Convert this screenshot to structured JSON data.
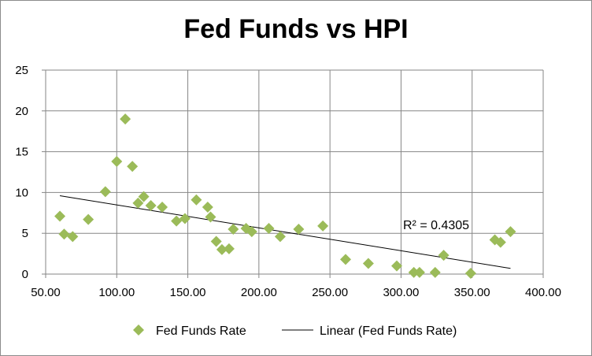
{
  "chart_data": {
    "type": "scatter",
    "title": "Fed Funds vs HPI",
    "xlabel": "",
    "ylabel": "",
    "xlim": [
      50,
      400
    ],
    "ylim": [
      0,
      25
    ],
    "x_ticks": [
      "50.00",
      "100.00",
      "150.00",
      "200.00",
      "250.00",
      "300.00",
      "350.00",
      "400.00"
    ],
    "y_ticks": [
      "0",
      "5",
      "10",
      "15",
      "20",
      "25"
    ],
    "grid": "horizontal and vertical",
    "legend_position": "bottom",
    "marker_color": "#9bbb59",
    "trend_color": "#000000",
    "series": [
      {
        "name": "Fed Funds Rate",
        "points": [
          [
            60,
            7.1
          ],
          [
            63,
            4.9
          ],
          [
            69,
            4.6
          ],
          [
            80,
            6.7
          ],
          [
            92,
            10.1
          ],
          [
            100,
            13.8
          ],
          [
            106,
            19.0
          ],
          [
            111,
            13.2
          ],
          [
            115,
            8.7
          ],
          [
            119,
            9.5
          ],
          [
            124,
            8.4
          ],
          [
            132,
            8.2
          ],
          [
            142,
            6.5
          ],
          [
            148,
            6.8
          ],
          [
            156,
            9.1
          ],
          [
            164,
            8.2
          ],
          [
            166,
            7.0
          ],
          [
            170,
            4.0
          ],
          [
            174,
            3.0
          ],
          [
            179,
            3.1
          ],
          [
            182,
            5.5
          ],
          [
            191,
            5.6
          ],
          [
            195,
            5.2
          ],
          [
            207,
            5.6
          ],
          [
            215,
            4.6
          ],
          [
            228,
            5.5
          ],
          [
            245,
            5.9
          ],
          [
            261,
            1.8
          ],
          [
            277,
            1.3
          ],
          [
            297,
            1.0
          ],
          [
            309,
            0.2
          ],
          [
            313,
            0.2
          ],
          [
            324,
            0.2
          ],
          [
            330,
            2.3
          ],
          [
            349,
            0.1
          ],
          [
            366,
            4.2
          ],
          [
            370,
            3.9
          ],
          [
            377,
            5.2
          ]
        ]
      }
    ],
    "trendline": {
      "name": "Linear (Fed Funds Rate)",
      "type": "linear",
      "from": [
        60,
        9.6
      ],
      "to": [
        377,
        0.7
      ],
      "r_squared_label": "R² = 0.4305"
    }
  }
}
